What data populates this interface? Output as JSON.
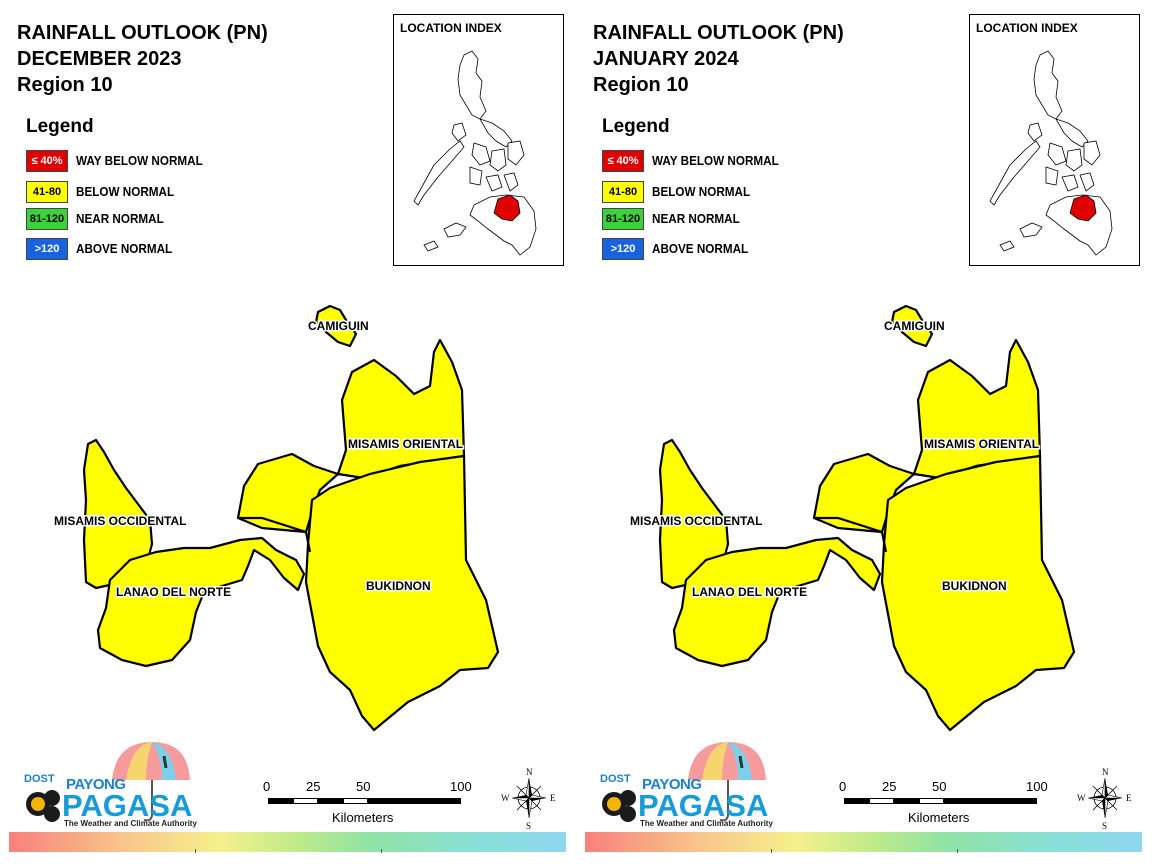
{
  "panels": [
    {
      "title_line1": "RAINFALL OUTLOOK (PN)",
      "title_line2": "DECEMBER 2023",
      "title_line3": "Region 10"
    },
    {
      "title_line1": "RAINFALL OUTLOOK (PN)",
      "title_line2": "JANUARY 2024",
      "title_line3": "Region 10"
    }
  ],
  "legend": {
    "title": "Legend",
    "items": [
      {
        "range": "≤ 40%",
        "label": "WAY BELOW NORMAL",
        "color": "#e00000",
        "text_color": "#ffffff"
      },
      {
        "range": "41-80",
        "label": "BELOW NORMAL",
        "color": "#ffff00",
        "text_color": "#000000"
      },
      {
        "range": "81-120",
        "label": "NEAR NORMAL",
        "color": "#3ad13a",
        "text_color": "#000000"
      },
      {
        "range": ">120",
        "label": "ABOVE NORMAL",
        "color": "#1864e0",
        "text_color": "#ffffff"
      }
    ]
  },
  "inset": {
    "title": "LOCATION INDEX",
    "highlight_color": "#e00000"
  },
  "regions": {
    "camiguin": "CAMIGUIN",
    "misamis_oriental": "MISAMIS ORIENTAL",
    "misamis_occidental": "MISAMIS OCCIDENTAL",
    "lanao_del_norte": "LANAO DEL NORTE",
    "bukidnon": "BUKIDNON",
    "fill_color": "#ffff00",
    "category": "BELOW NORMAL"
  },
  "logo": {
    "dost": "DOST",
    "payong": "PAYONG",
    "pagasa": "PAGASA",
    "tagline": "The Weather and Climate Authority"
  },
  "scale_bar": {
    "ticks": [
      "0",
      "25",
      "50",
      "100"
    ],
    "unit": "Kilometers"
  },
  "compass": {
    "n": "N",
    "s": "S",
    "e": "E",
    "w": "W"
  }
}
